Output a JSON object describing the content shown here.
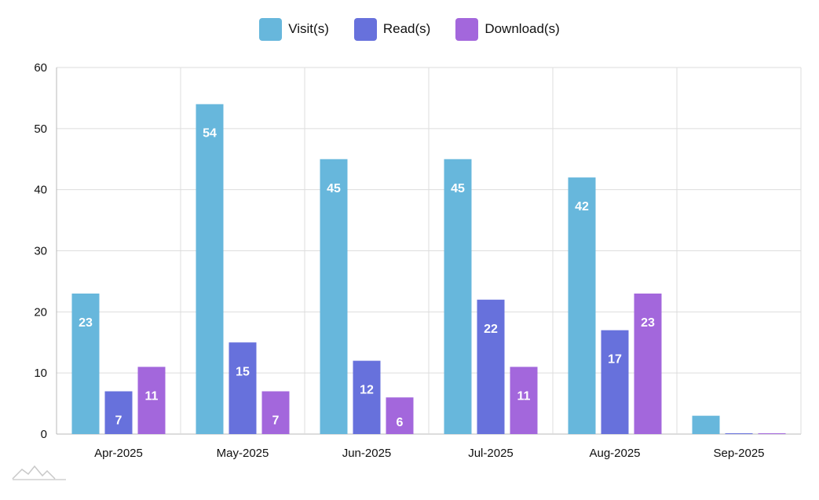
{
  "chart_data": {
    "type": "bar",
    "categories": [
      "Apr-2025",
      "May-2025",
      "Jun-2025",
      "Jul-2025",
      "Aug-2025",
      "Sep-2025"
    ],
    "series": [
      {
        "name": "Visit(s)",
        "color": "#67b7dc",
        "values": [
          23,
          54,
          45,
          45,
          42,
          3
        ]
      },
      {
        "name": "Read(s)",
        "color": "#6771dc",
        "values": [
          7,
          15,
          12,
          22,
          17,
          0
        ]
      },
      {
        "name": "Download(s)",
        "color": "#a367dc",
        "values": [
          11,
          7,
          6,
          11,
          23,
          0
        ]
      }
    ],
    "ylim": [
      0,
      60
    ],
    "yticks": [
      0,
      10,
      20,
      30,
      40,
      50,
      60
    ],
    "grid": true,
    "legend": "top-center",
    "title": "",
    "xlabel": "",
    "ylabel": ""
  }
}
